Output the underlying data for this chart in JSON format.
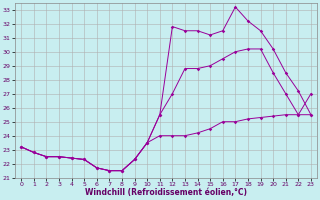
{
  "xlabel": "Windchill (Refroidissement éolien,°C)",
  "bg_color": "#c8eef0",
  "grid_color": "#b0b0b0",
  "line_color": "#990099",
  "ylim": [
    21,
    33.5
  ],
  "xlim": [
    -0.5,
    23.5
  ],
  "yticks": [
    21,
    22,
    23,
    24,
    25,
    26,
    27,
    28,
    29,
    30,
    31,
    32,
    33
  ],
  "xticks": [
    0,
    1,
    2,
    3,
    4,
    5,
    6,
    7,
    8,
    9,
    10,
    11,
    12,
    13,
    14,
    15,
    16,
    17,
    18,
    19,
    20,
    21,
    22,
    23
  ],
  "line1_x": [
    0,
    1,
    2,
    3,
    4,
    5,
    6,
    7,
    8,
    9,
    10,
    11,
    12,
    13,
    14,
    15,
    16,
    17,
    18,
    19,
    20,
    21,
    22,
    23
  ],
  "line1_y": [
    23.2,
    22.8,
    22.5,
    22.5,
    22.4,
    22.3,
    21.7,
    21.5,
    21.5,
    22.3,
    23.5,
    24.0,
    24.0,
    24.0,
    24.2,
    24.5,
    25.0,
    25.0,
    25.2,
    25.3,
    25.4,
    25.5,
    25.5,
    25.5
  ],
  "line2_x": [
    0,
    1,
    2,
    3,
    4,
    5,
    6,
    7,
    8,
    9,
    10,
    11,
    12,
    13,
    14,
    15,
    16,
    17,
    18,
    19,
    20,
    21,
    22,
    23
  ],
  "line2_y": [
    23.2,
    22.8,
    22.5,
    22.5,
    22.4,
    22.3,
    21.7,
    21.5,
    21.5,
    22.3,
    23.5,
    25.5,
    27.0,
    28.8,
    28.8,
    29.0,
    29.5,
    30.0,
    30.2,
    30.2,
    28.5,
    27.0,
    25.5,
    27.0
  ],
  "line3_x": [
    0,
    1,
    2,
    3,
    4,
    5,
    6,
    7,
    8,
    9,
    10,
    11,
    12,
    13,
    14,
    15,
    16,
    17,
    18,
    19,
    20,
    21,
    22,
    23
  ],
  "line3_y": [
    23.2,
    22.8,
    22.5,
    22.5,
    22.4,
    22.3,
    21.7,
    21.5,
    21.5,
    22.3,
    23.5,
    25.5,
    31.8,
    31.5,
    31.5,
    31.2,
    31.5,
    33.2,
    32.2,
    31.5,
    30.2,
    28.5,
    27.2,
    25.5
  ]
}
